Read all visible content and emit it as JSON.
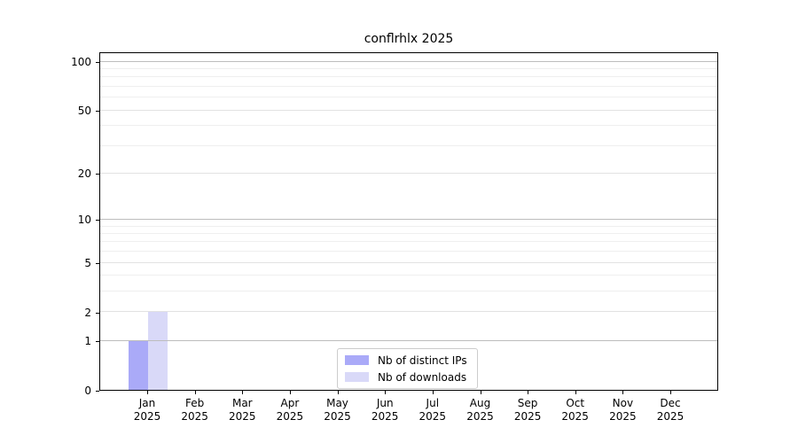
{
  "chart_data": {
    "type": "bar",
    "title": "conflrhlx 2025",
    "categories": [
      "Jan 2025",
      "Feb 2025",
      "Mar 2025",
      "Apr 2025",
      "May 2025",
      "Jun 2025",
      "Jul 2025",
      "Aug 2025",
      "Sep 2025",
      "Oct 2025",
      "Nov 2025",
      "Dec 2025"
    ],
    "series": [
      {
        "name": "Nb of distinct IPs",
        "color": "#aaaaf8",
        "values": [
          1,
          0,
          0,
          0,
          0,
          0,
          0,
          0,
          0,
          0,
          0,
          0
        ]
      },
      {
        "name": "Nb of downloads",
        "color": "#d9d9f8",
        "values": [
          2,
          0,
          0,
          0,
          0,
          0,
          0,
          0,
          0,
          0,
          0,
          0
        ]
      }
    ],
    "xlabel": "",
    "ylabel": "",
    "yscale": "log1p",
    "ylim": [
      0,
      115
    ],
    "y_ticks": [
      0,
      1,
      2,
      5,
      10,
      20,
      50,
      100
    ],
    "y_minor_gridlines": [
      3,
      4,
      6,
      7,
      8,
      9,
      30,
      40,
      60,
      70,
      80,
      90
    ],
    "y_strong_gridlines": [
      1,
      10,
      100
    ],
    "grid": "on",
    "legend_position": "lower center",
    "colors": {
      "axis": "#000000",
      "grid_strong": "#bdbdbd",
      "grid_mid": "#e2e2e2",
      "grid_minor": "#efefef",
      "legend_border": "#cccccc"
    }
  }
}
